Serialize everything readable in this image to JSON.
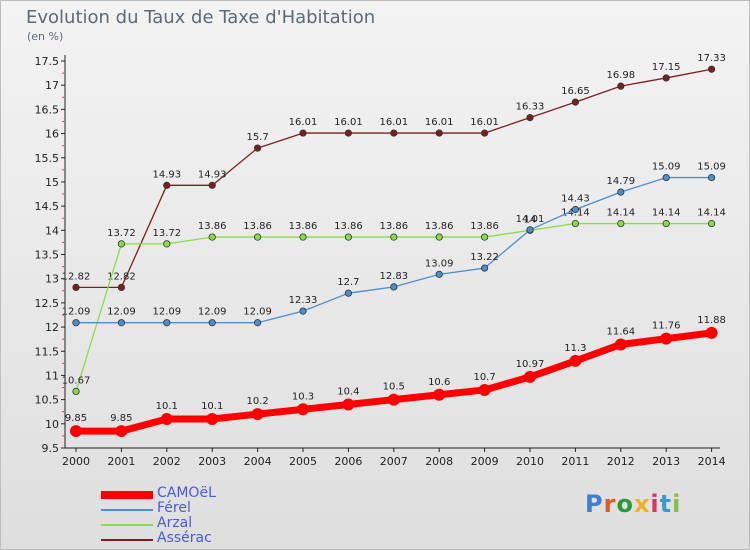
{
  "title": "Evolution du Taux de Taxe d'Habitation",
  "subtitle": "(en %)",
  "logo": "Proxiti",
  "chart_data": {
    "type": "line",
    "title": "Evolution du Taux de Taxe d'Habitation",
    "ylabel": "(en %)",
    "xlabel": "",
    "x": [
      "2000",
      "2001",
      "2002",
      "2003",
      "2004",
      "2005",
      "2006",
      "2007",
      "2008",
      "2009",
      "2010",
      "2011",
      "2012",
      "2013",
      "2014"
    ],
    "ylim": [
      9.5,
      17.5
    ],
    "yticks": [
      "9.5",
      "10",
      "10.5",
      "11",
      "11.5",
      "12",
      "12.5",
      "13",
      "13.5",
      "14",
      "14.5",
      "15",
      "15.5",
      "16",
      "16.5",
      "17",
      "17.5"
    ],
    "grid": false,
    "legend_position": "bottom-left",
    "series": [
      {
        "name": "CAMOëL",
        "color": "#ff0000",
        "values": [
          9.85,
          9.85,
          10.1,
          10.1,
          10.2,
          10.3,
          10.4,
          10.5,
          10.6,
          10.7,
          10.97,
          11.3,
          11.64,
          11.76,
          11.88
        ],
        "labels": [
          "9.85",
          "9.85",
          "10.1",
          "10.1",
          "10.2",
          "10.3",
          "10.4",
          "10.5",
          "10.6",
          "10.7",
          "10.97",
          "11.3",
          "11.64",
          "11.76",
          "11.88"
        ]
      },
      {
        "name": "Férel",
        "color": "#4a8fcc",
        "values": [
          12.09,
          12.09,
          12.09,
          12.09,
          12.09,
          12.33,
          12.7,
          12.83,
          13.09,
          13.22,
          14.01,
          14.43,
          14.79,
          15.09,
          15.09
        ],
        "labels": [
          "12.09",
          "12.09",
          "12.09",
          "12.09",
          "12.09",
          "12.33",
          "12.7",
          "12.83",
          "13.09",
          "13.22",
          "14.01",
          "14.43",
          "14.79",
          "15.09",
          "15.09"
        ]
      },
      {
        "name": "Arzal",
        "color": "#88dd44",
        "values": [
          10.67,
          13.72,
          13.72,
          13.86,
          13.86,
          13.86,
          13.86,
          13.86,
          13.86,
          13.86,
          14.0,
          14.14,
          14.14,
          14.14,
          14.14
        ],
        "labels": [
          "10.67",
          "13.72",
          "13.72",
          "13.86",
          "13.86",
          "13.86",
          "13.86",
          "13.86",
          "13.86",
          "13.86",
          "14",
          "14.14",
          "14.14",
          "14.14",
          "14.14"
        ]
      },
      {
        "name": "Assérac",
        "color": "#7a1f1f",
        "values": [
          12.82,
          12.82,
          14.93,
          14.93,
          15.7,
          16.01,
          16.01,
          16.01,
          16.01,
          16.01,
          16.33,
          16.65,
          16.98,
          17.15,
          17.33
        ],
        "labels": [
          "12.82",
          "12.82",
          "14.93",
          "14.93",
          "15.7",
          "16.01",
          "16.01",
          "16.01",
          "16.01",
          "16.01",
          "16.33",
          "16.65",
          "16.98",
          "17.15",
          "17.33"
        ]
      }
    ]
  }
}
